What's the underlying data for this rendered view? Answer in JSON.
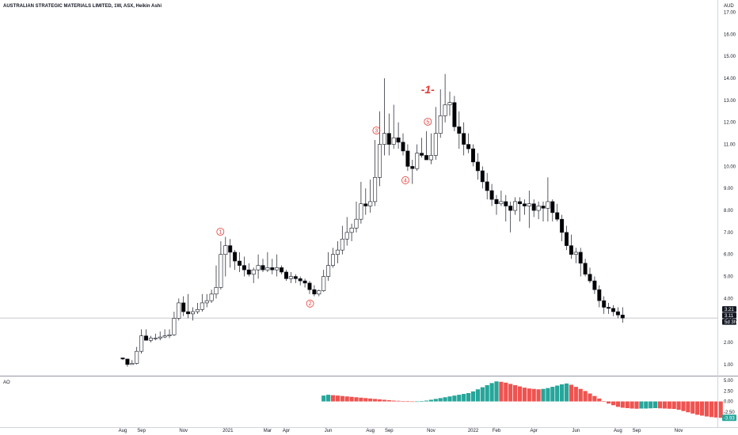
{
  "header": {
    "title": "AUSTRALIAN STRATEGIC MATERIALS LIMITED, 1W, ASX, Heikin Ashi",
    "currency": "AUD",
    "oscillator_label": "AO"
  },
  "price_badges": [
    "3.21",
    "3.11",
    "5d 3h"
  ],
  "ao_badge": "-3.93",
  "colors": {
    "bull_body": "#ffffff",
    "bear_body": "#000000",
    "wick": "#131722",
    "annotation": "#e53935",
    "ao_up": "#26a69a",
    "ao_down": "#ef5350",
    "grid_line": "#b2b5be"
  },
  "annotations": [
    {
      "label": "1",
      "type": "circle",
      "time": 20.9
    },
    {
      "label": "2",
      "type": "circle",
      "time": 40.1
    },
    {
      "label": "3",
      "type": "circle",
      "time": 54.3
    },
    {
      "label": "4",
      "type": "circle",
      "time": 60.5
    },
    {
      "label": "5",
      "type": "circle",
      "time": 65.3
    },
    {
      "label": "-1-",
      "type": "big",
      "time": 65.3
    }
  ],
  "chart_data": [
    {
      "type": "candlestick",
      "title": "AUSTRALIAN STRATEGIC MATERIALS LIMITED, 1W, ASX, Heikin Ashi",
      "series_note": "Weekly Heikin Ashi candles, x = weeks from first bar (late Jul 2020)",
      "y_axis_ticks": [
        "17.00",
        "16.00",
        "15.00",
        "14.00",
        "13.00",
        "12.00",
        "11.00",
        "10.00",
        "9.00",
        "8.00",
        "7.00",
        "6.00",
        "5.00",
        "4.00",
        "3.00",
        "2.00",
        "1.00"
      ],
      "ylim": [
        0.6,
        17.2
      ],
      "x_axis_ticks": [
        "Aug",
        "Sep",
        "Nov",
        "2021",
        "Mar",
        "Apr",
        "Jun",
        "Aug",
        "Sep",
        "Nov",
        "2022",
        "Feb",
        "Apr",
        "Jun",
        "Aug",
        "Sep",
        "Nov"
      ],
      "x_tick_weeks": [
        0,
        4,
        13,
        22.5,
        31,
        35,
        44,
        53,
        57,
        66,
        75,
        80,
        88,
        97,
        106,
        110,
        119
      ],
      "ohlc": [
        [
          1.3,
          1.3,
          1.2,
          1.25
        ],
        [
          1.25,
          1.25,
          0.9,
          1.0
        ],
        [
          1.0,
          1.2,
          1.0,
          1.05
        ],
        [
          1.05,
          1.8,
          1.0,
          1.6
        ],
        [
          1.6,
          2.6,
          1.5,
          2.3
        ],
        [
          2.3,
          2.6,
          2.1,
          2.1
        ],
        [
          2.1,
          2.3,
          2.0,
          2.2
        ],
        [
          2.2,
          2.4,
          2.1,
          2.2
        ],
        [
          2.2,
          2.5,
          2.1,
          2.25
        ],
        [
          2.25,
          2.6,
          2.2,
          2.3
        ],
        [
          2.3,
          2.6,
          2.2,
          2.35
        ],
        [
          2.35,
          3.4,
          2.3,
          3.1
        ],
        [
          3.1,
          4.0,
          3.0,
          3.8
        ],
        [
          3.8,
          4.1,
          3.2,
          3.4
        ],
        [
          3.4,
          4.2,
          3.1,
          3.3
        ],
        [
          3.3,
          3.6,
          3.0,
          3.4
        ],
        [
          3.4,
          3.8,
          3.3,
          3.5
        ],
        [
          3.5,
          4.2,
          3.4,
          3.8
        ],
        [
          3.8,
          4.2,
          3.6,
          3.9
        ],
        [
          3.9,
          4.4,
          3.8,
          4.2
        ],
        [
          4.2,
          5.5,
          4.0,
          4.5
        ],
        [
          4.5,
          6.6,
          4.4,
          6.0
        ],
        [
          6.0,
          6.8,
          5.0,
          6.4
        ],
        [
          6.4,
          6.7,
          5.4,
          6.1
        ],
        [
          6.1,
          6.2,
          5.3,
          5.7
        ],
        [
          5.7,
          6.1,
          5.2,
          5.5
        ],
        [
          5.5,
          5.9,
          5.0,
          5.3
        ],
        [
          5.3,
          5.6,
          5.0,
          5.1
        ],
        [
          5.1,
          5.4,
          4.7,
          5.3
        ],
        [
          5.3,
          6.0,
          4.9,
          5.5
        ],
        [
          5.5,
          5.8,
          5.2,
          5.3
        ],
        [
          5.3,
          6.1,
          5.2,
          5.4
        ],
        [
          5.4,
          5.8,
          5.1,
          5.3
        ],
        [
          5.3,
          6.0,
          5.0,
          5.4
        ],
        [
          5.4,
          5.5,
          5.1,
          5.2
        ],
        [
          5.2,
          5.3,
          4.8,
          4.9
        ],
        [
          4.9,
          5.2,
          4.7,
          5.0
        ],
        [
          5.0,
          5.1,
          4.7,
          4.9
        ],
        [
          4.9,
          5.0,
          4.6,
          4.8
        ],
        [
          4.8,
          4.9,
          4.5,
          4.7
        ],
        [
          4.7,
          4.8,
          4.2,
          4.4
        ],
        [
          4.4,
          4.6,
          4.1,
          4.2
        ],
        [
          4.2,
          4.4,
          4.1,
          4.35
        ],
        [
          4.35,
          5.3,
          4.3,
          5.0
        ],
        [
          5.0,
          6.1,
          4.8,
          5.5
        ],
        [
          5.5,
          6.3,
          5.4,
          6.0
        ],
        [
          6.0,
          6.6,
          5.6,
          6.2
        ],
        [
          6.2,
          7.3,
          6.0,
          6.7
        ],
        [
          6.7,
          7.7,
          6.4,
          7.0
        ],
        [
          7.0,
          7.4,
          6.6,
          7.2
        ],
        [
          7.2,
          8.4,
          7.0,
          7.6
        ],
        [
          7.6,
          9.3,
          7.4,
          8.3
        ],
        [
          8.3,
          9.0,
          7.8,
          8.2
        ],
        [
          8.2,
          9.4,
          7.9,
          8.4
        ],
        [
          8.4,
          11.2,
          8.2,
          9.5
        ],
        [
          9.5,
          12.5,
          9.1,
          11.0
        ],
        [
          11.0,
          14.0,
          10.5,
          11.5
        ],
        [
          11.5,
          12.4,
          10.5,
          11.0
        ],
        [
          11.0,
          12.8,
          10.8,
          11.3
        ],
        [
          11.3,
          12.0,
          10.8,
          11.1
        ],
        [
          11.1,
          11.5,
          10.5,
          10.7
        ],
        [
          10.7,
          11.0,
          9.8,
          10.0
        ],
        [
          10.0,
          10.3,
          9.2,
          9.9
        ],
        [
          9.9,
          11.0,
          9.8,
          10.6
        ],
        [
          10.6,
          11.3,
          10.4,
          10.5
        ],
        [
          10.5,
          11.6,
          10.3,
          10.3
        ],
        [
          10.3,
          11.5,
          10.1,
          10.5
        ],
        [
          10.5,
          12.7,
          10.3,
          11.5
        ],
        [
          11.5,
          13.5,
          11.3,
          12.3
        ],
        [
          12.3,
          14.2,
          12.0,
          12.8
        ],
        [
          12.8,
          13.4,
          12.3,
          12.9
        ],
        [
          12.9,
          13.2,
          11.6,
          11.8
        ],
        [
          11.8,
          12.5,
          10.8,
          11.5
        ],
        [
          11.5,
          12.0,
          10.5,
          11.0
        ],
        [
          11.0,
          11.5,
          10.6,
          10.8
        ],
        [
          10.8,
          11.0,
          10.0,
          10.2
        ],
        [
          10.2,
          10.6,
          9.4,
          9.8
        ],
        [
          9.8,
          10.0,
          9.0,
          9.3
        ],
        [
          9.3,
          9.7,
          8.5,
          8.9
        ],
        [
          8.9,
          9.2,
          8.2,
          8.5
        ],
        [
          8.5,
          8.7,
          7.8,
          8.3
        ],
        [
          8.3,
          8.9,
          8.2,
          8.4
        ],
        [
          8.4,
          8.7,
          7.5,
          8.2
        ],
        [
          8.2,
          8.4,
          7.0,
          8.0
        ],
        [
          8.0,
          8.6,
          7.8,
          8.4
        ],
        [
          8.4,
          8.6,
          7.5,
          8.3
        ],
        [
          8.3,
          8.5,
          7.8,
          8.2
        ],
        [
          8.2,
          8.9,
          7.2,
          8.3
        ],
        [
          8.3,
          8.5,
          7.7,
          8.0
        ],
        [
          8.0,
          8.4,
          7.6,
          8.2
        ],
        [
          8.2,
          8.4,
          7.5,
          8.1
        ],
        [
          8.1,
          9.5,
          7.5,
          8.4
        ],
        [
          8.4,
          8.5,
          7.5,
          7.9
        ],
        [
          7.9,
          8.3,
          7.5,
          7.6
        ],
        [
          7.6,
          7.8,
          6.6,
          7.0
        ],
        [
          7.0,
          7.3,
          6.2,
          6.4
        ],
        [
          6.4,
          6.9,
          5.8,
          6.0
        ],
        [
          6.0,
          6.3,
          5.6,
          6.1
        ],
        [
          6.1,
          6.3,
          5.0,
          5.6
        ],
        [
          5.6,
          5.8,
          5.0,
          5.1
        ],
        [
          5.1,
          5.4,
          4.7,
          4.8
        ],
        [
          4.8,
          5.0,
          4.2,
          4.4
        ],
        [
          4.4,
          4.6,
          3.6,
          3.9
        ],
        [
          3.9,
          4.1,
          3.3,
          3.6
        ],
        [
          3.6,
          3.8,
          3.3,
          3.55
        ],
        [
          3.55,
          3.7,
          3.2,
          3.4
        ],
        [
          3.4,
          3.6,
          3.1,
          3.25
        ],
        [
          3.25,
          3.6,
          2.9,
          3.11
        ]
      ],
      "last_price": 3.11
    },
    {
      "type": "bar",
      "title": "AO",
      "y_axis_ticks": [
        "5.00",
        "2.50",
        "0.00",
        "-2.50"
      ],
      "ylim": [
        -5.2,
        5.6
      ],
      "values": [
        1.4,
        1.6,
        1.5,
        1.4,
        1.3,
        1.2,
        1.1,
        1.0,
        0.9,
        0.8,
        0.7,
        0.6,
        0.5,
        0.4,
        0.3,
        0.2,
        0.15,
        0.1,
        0.05,
        0.0,
        0.0,
        0.1,
        0.2,
        0.4,
        0.6,
        0.8,
        1.0,
        1.2,
        1.4,
        1.6,
        1.8,
        2.0,
        2.4,
        2.9,
        3.4,
        3.9,
        4.4,
        4.8,
        4.7,
        4.5,
        4.2,
        3.9,
        3.6,
        3.3,
        3.1,
        3.0,
        2.9,
        3.0,
        3.2,
        3.5,
        3.8,
        4.1,
        4.3,
        4.0,
        3.5,
        3.0,
        2.5,
        1.9,
        1.3,
        0.7,
        0.1,
        -0.5,
        -0.9,
        -1.3,
        -1.5,
        -1.6,
        -1.7,
        -1.75,
        -1.7,
        -1.7,
        -1.65,
        -1.6,
        -1.65,
        -1.7,
        -1.75,
        -1.8,
        -2.0,
        -2.3,
        -2.6,
        -2.9,
        -3.2,
        -3.4,
        -3.6,
        -3.75,
        -3.85,
        -3.93
      ],
      "start_week": 43
    }
  ]
}
